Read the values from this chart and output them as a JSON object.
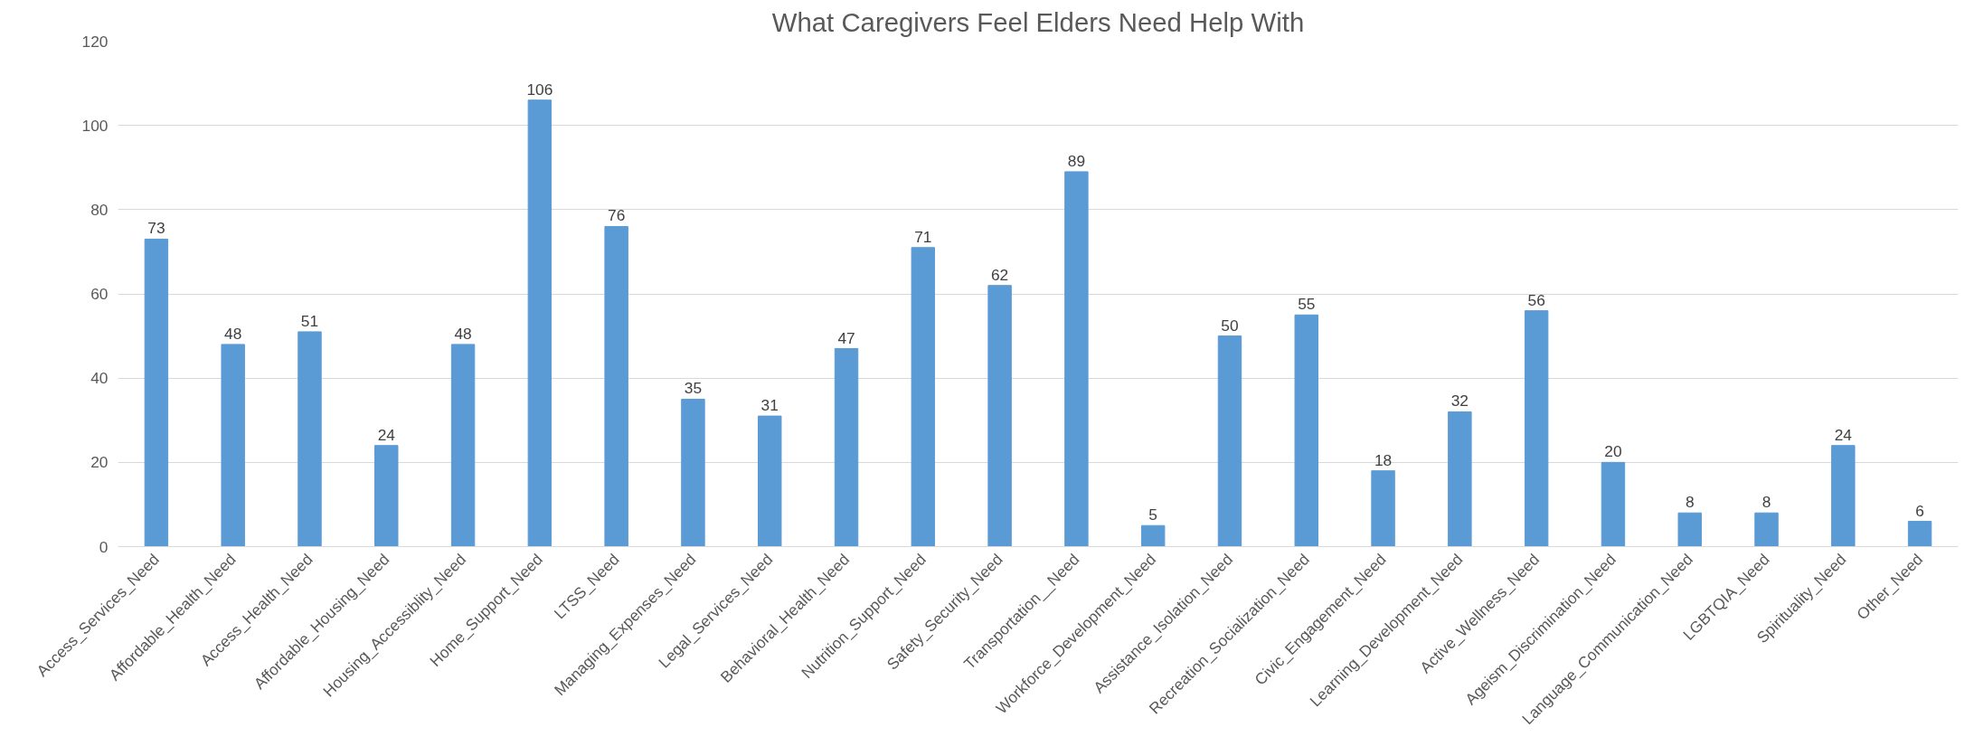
{
  "chart_data": {
    "type": "bar",
    "title": "What Caregivers Feel Elders Need Help With",
    "categories": [
      "Access_Services_Need",
      "Affordable_Health_Need",
      "Access_Health_Need",
      "Affordable_Housing_Need",
      "Housing_Accessiblity_Need",
      "Home_Support_Need",
      "LTSS_Need",
      "Managing_Expenses_Need",
      "Legal_Services_Need",
      "Behavioral_Health_Need",
      "Nutrition_Support_Need",
      "Safety_Security_Need",
      "Transportation__Need",
      "Workforce_Development_Need",
      "Assistance_Isolation_Need",
      "Recreation_Socialization_Need",
      "Civic_Engagement_Need",
      "Learning_Development_Need",
      "Active_Wellness_Need",
      "Ageism_Discrimination_Need",
      "Language_Communication_Need",
      "LGBTQIA_Need",
      "Spirituality_Need",
      "Other_Need"
    ],
    "values": [
      73,
      48,
      51,
      24,
      48,
      106,
      76,
      35,
      31,
      47,
      71,
      62,
      89,
      5,
      50,
      55,
      18,
      32,
      56,
      20,
      8,
      8,
      24,
      6
    ],
    "color": "#5b9bd5",
    "ylim": [
      0,
      120
    ],
    "yticks": [
      0,
      20,
      40,
      60,
      80,
      100,
      120
    ],
    "grid": "y",
    "data_labels": true
  }
}
